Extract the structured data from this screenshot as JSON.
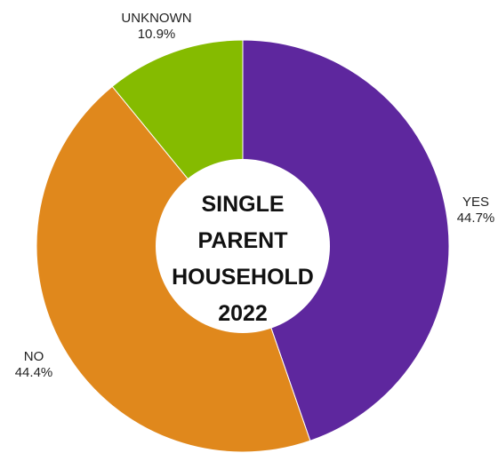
{
  "chart_data": {
    "type": "pie",
    "subtype": "donut",
    "center_title_lines": [
      "SINGLE",
      "PARENT",
      "HOUSEHOLD",
      "2022"
    ],
    "slices": [
      {
        "label": "YES",
        "value": 44.7,
        "value_label": "44.7%",
        "color": "#5e279e"
      },
      {
        "label": "NO",
        "value": 44.4,
        "value_label": "44.4%",
        "color": "#e0881c"
      },
      {
        "label": "UNKNOWN",
        "value": 10.9,
        "value_label": "10.9%",
        "color": "#85bb00"
      }
    ]
  }
}
